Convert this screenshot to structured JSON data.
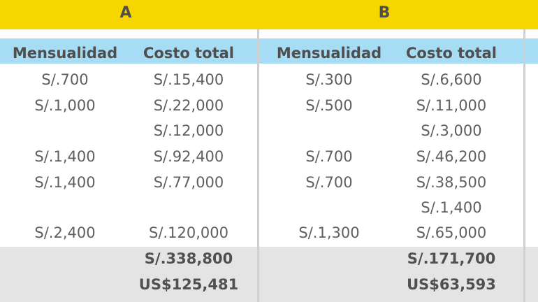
{
  "groups": {
    "a": {
      "label": "A",
      "headers": {
        "monthly": "Mensualidad",
        "total_cost": "Costo total"
      },
      "rows": [
        {
          "monthly": "S/.700",
          "total_cost": "S/.15,400"
        },
        {
          "monthly": "S/.1,000",
          "total_cost": "S/.22,000"
        },
        {
          "monthly": "",
          "total_cost": "S/.12,000"
        },
        {
          "monthly": "S/.1,400",
          "total_cost": "S/.92,400"
        },
        {
          "monthly": "S/.1,400",
          "total_cost": "S/.77,000"
        },
        {
          "monthly": "",
          "total_cost": ""
        },
        {
          "monthly": "S/.2,400",
          "total_cost": "S/.120,000"
        }
      ],
      "total_soles": "S/.338,800",
      "total_usd": "US$125,481"
    },
    "b": {
      "label": "B",
      "headers": {
        "monthly": "Mensualidad",
        "total_cost": "Costo total"
      },
      "rows": [
        {
          "monthly": "S/.300",
          "total_cost": "S/.6,600"
        },
        {
          "monthly": "S/.500",
          "total_cost": "S/.11,000"
        },
        {
          "monthly": "",
          "total_cost": "S/.3,000"
        },
        {
          "monthly": "S/.700",
          "total_cost": "S/.46,200"
        },
        {
          "monthly": "S/.700",
          "total_cost": "S/.38,500"
        },
        {
          "monthly": "",
          "total_cost": "S/.1,400"
        },
        {
          "monthly": "S/.1,300",
          "total_cost": "S/.65,000"
        }
      ],
      "total_soles": "S/.171,700",
      "total_usd": "US$63,593"
    }
  },
  "colors": {
    "header_band": "#f7d600",
    "column_header_band": "#a6ddf5",
    "totals_band": "#e4e4e5",
    "divider": "#cfd0d2"
  }
}
